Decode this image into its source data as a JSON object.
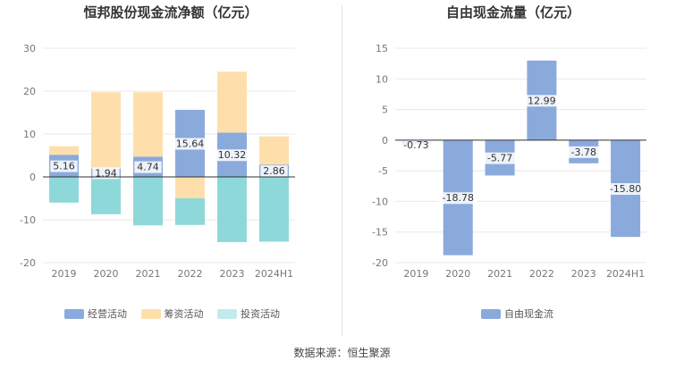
{
  "chart_data": [
    {
      "type": "bar",
      "stacked": true,
      "title": "恒邦股份现金流净额（亿元）",
      "categories": [
        "2019",
        "2020",
        "2021",
        "2022",
        "2023",
        "2024H1"
      ],
      "series": [
        {
          "name": "经营活动",
          "color": "#8aaadc",
          "values": [
            5.16,
            1.94,
            4.74,
            15.64,
            10.32,
            2.86
          ],
          "labels": [
            "5.16",
            "1.94",
            "4.74",
            "15.64",
            "10.32",
            "2.86"
          ]
        },
        {
          "name": "筹资活动",
          "color": "#fedfac",
          "values": [
            2.0,
            17.8,
            15.0,
            -5.0,
            14.2,
            6.6
          ]
        },
        {
          "name": "投资活动",
          "color": "#8ed8da",
          "values": [
            -6.0,
            -8.7,
            -11.3,
            -6.2,
            -15.2,
            -15.1
          ]
        }
      ],
      "yticks": [
        "30",
        "20",
        "10",
        "0",
        "-10",
        "-20"
      ],
      "ylim": [
        -20,
        30
      ],
      "legend_position": "bottom"
    },
    {
      "type": "bar",
      "title": "自由现金流量（亿元）",
      "categories": [
        "2019",
        "2020",
        "2021",
        "2022",
        "2023",
        "2024H1"
      ],
      "series": [
        {
          "name": "自由现金流",
          "color": "#8aaadc",
          "values": [
            -0.73,
            -18.78,
            -5.77,
            12.99,
            -3.78,
            -15.8
          ],
          "labels": [
            "-0.73",
            "-18.78",
            "-5.77",
            "12.99",
            "-3.78",
            "-15.80"
          ]
        }
      ],
      "yticks": [
        "15",
        "10",
        "5",
        "0",
        "-5",
        "-10",
        "-15",
        "-20"
      ],
      "ylim": [
        -20,
        15
      ],
      "legend_position": "bottom"
    }
  ],
  "footer": {
    "source": "数据来源：恒生聚源"
  }
}
